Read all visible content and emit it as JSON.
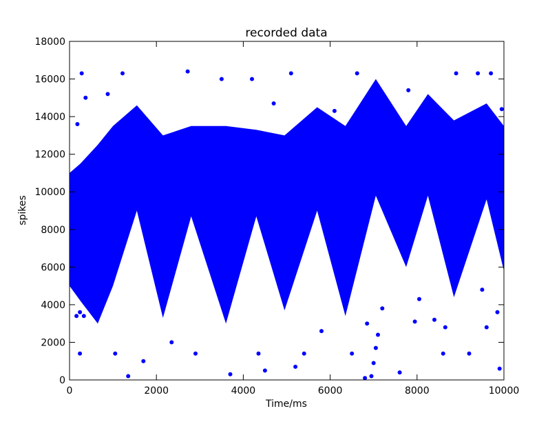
{
  "chart_data": {
    "type": "scatter",
    "title": "recorded data",
    "xlabel": "Time/ms",
    "ylabel": "spikes",
    "xlim": [
      0,
      10000
    ],
    "ylim": [
      0,
      18000
    ],
    "xticks": [
      0,
      2000,
      4000,
      6000,
      8000,
      10000
    ],
    "yticks": [
      0,
      2000,
      4000,
      6000,
      8000,
      10000,
      12000,
      14000,
      16000,
      18000
    ],
    "grid": false,
    "legend": "none",
    "marker_color": "#0000ff",
    "band": {
      "t": [
        0,
        250,
        650,
        1000,
        1550,
        2150,
        2800,
        3600,
        4300,
        4950,
        5700,
        6350,
        7050,
        7750,
        8250,
        8850,
        9600,
        10000
      ],
      "low": [
        5000,
        4200,
        3000,
        5000,
        9000,
        3300,
        8700,
        3000,
        8700,
        3700,
        9000,
        3400,
        9800,
        6000,
        9800,
        4400,
        9600,
        5800
      ],
      "high": [
        11000,
        11500,
        12500,
        13500,
        14600,
        13000,
        13500,
        13500,
        13300,
        13000,
        14500,
        13500,
        16000,
        13500,
        15200,
        13800,
        14700,
        13500
      ]
    },
    "sample_points": [
      {
        "x": 280,
        "y": 16300
      },
      {
        "x": 1220,
        "y": 16300
      },
      {
        "x": 2720,
        "y": 16400
      },
      {
        "x": 5100,
        "y": 16300
      },
      {
        "x": 6620,
        "y": 16300
      },
      {
        "x": 8900,
        "y": 16300
      },
      {
        "x": 9400,
        "y": 16300
      },
      {
        "x": 9700,
        "y": 16300
      },
      {
        "x": 370,
        "y": 15000
      },
      {
        "x": 880,
        "y": 15200
      },
      {
        "x": 3500,
        "y": 16000
      },
      {
        "x": 4200,
        "y": 16000
      },
      {
        "x": 7800,
        "y": 15400
      },
      {
        "x": 9950,
        "y": 14400
      },
      {
        "x": 180,
        "y": 13600
      },
      {
        "x": 4700,
        "y": 14700
      },
      {
        "x": 6100,
        "y": 14300
      },
      {
        "x": 240,
        "y": 3600
      },
      {
        "x": 160,
        "y": 3400
      },
      {
        "x": 330,
        "y": 3400
      },
      {
        "x": 240,
        "y": 1400
      },
      {
        "x": 1050,
        "y": 1400
      },
      {
        "x": 1700,
        "y": 1000
      },
      {
        "x": 2350,
        "y": 2000
      },
      {
        "x": 2900,
        "y": 1400
      },
      {
        "x": 3700,
        "y": 300
      },
      {
        "x": 4350,
        "y": 1400
      },
      {
        "x": 5400,
        "y": 1400
      },
      {
        "x": 5800,
        "y": 2600
      },
      {
        "x": 6500,
        "y": 1400
      },
      {
        "x": 6800,
        "y": 100
      },
      {
        "x": 6950,
        "y": 200
      },
      {
        "x": 7000,
        "y": 900
      },
      {
        "x": 7050,
        "y": 1700
      },
      {
        "x": 7100,
        "y": 2400
      },
      {
        "x": 7200,
        "y": 3800
      },
      {
        "x": 6850,
        "y": 3000
      },
      {
        "x": 7950,
        "y": 3100
      },
      {
        "x": 8050,
        "y": 4300
      },
      {
        "x": 8400,
        "y": 3200
      },
      {
        "x": 8650,
        "y": 2800
      },
      {
        "x": 9200,
        "y": 1400
      },
      {
        "x": 9600,
        "y": 2800
      },
      {
        "x": 9900,
        "y": 600
      },
      {
        "x": 1350,
        "y": 200
      },
      {
        "x": 4500,
        "y": 500
      },
      {
        "x": 5200,
        "y": 700
      },
      {
        "x": 8600,
        "y": 1400
      },
      {
        "x": 9500,
        "y": 4800
      },
      {
        "x": 9850,
        "y": 3600
      },
      {
        "x": 7600,
        "y": 400
      }
    ]
  }
}
